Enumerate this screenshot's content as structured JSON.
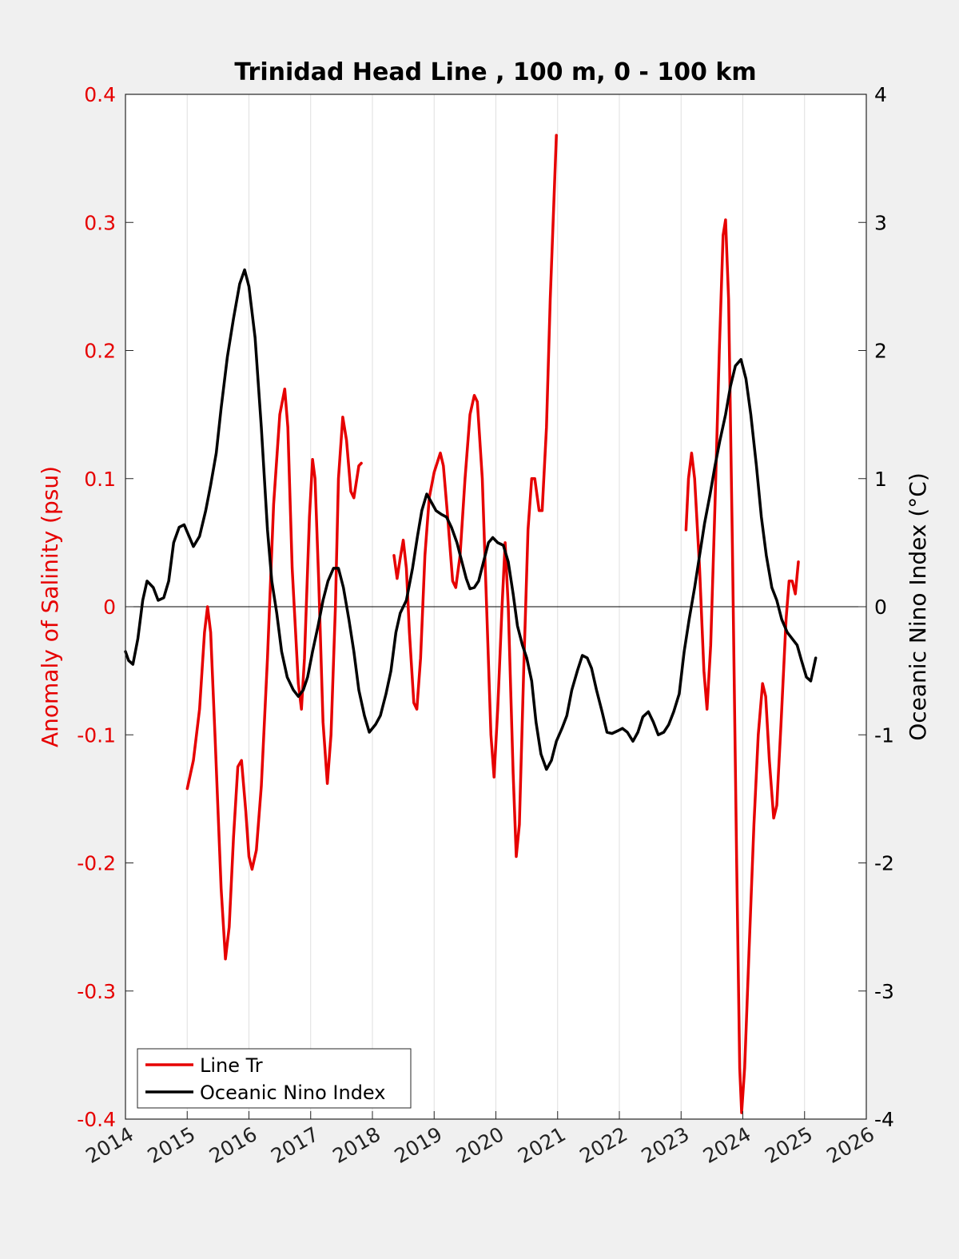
{
  "chart_data": {
    "type": "line",
    "title": "Trinidad Head Line , 100 m, 0 - 100 km",
    "ylabel_left": "Anomaly of Salinity (psu)",
    "ylabel_right": "Oceanic Nino Index (°C)",
    "xlim": [
      2014,
      2026
    ],
    "ylim_left": [
      -0.4,
      0.4
    ],
    "ylim_right": [
      -4,
      4
    ],
    "x_ticks": [
      "2014",
      "2015",
      "2016",
      "2017",
      "2018",
      "2019",
      "2020",
      "2021",
      "2022",
      "2023",
      "2024",
      "2025",
      "2026"
    ],
    "y_ticks_left": [
      "-0.4",
      "-0.3",
      "-0.2",
      "-0.1",
      "0",
      "0.1",
      "0.2",
      "0.3",
      "0.4"
    ],
    "y_ticks_right": [
      "-4",
      "-3",
      "-2",
      "-1",
      "0",
      "1",
      "2",
      "3",
      "4"
    ],
    "grid": "vertical",
    "legend_position": "bottom-left",
    "colors": {
      "salinity": "#e60000",
      "oni": "#000000",
      "background": "#f0f0f0"
    },
    "series": [
      {
        "name": "Line Tr",
        "axis": "left",
        "segments": [
          [
            [
              2015.0,
              -0.142
            ],
            [
              2015.1,
              -0.12
            ],
            [
              2015.2,
              -0.08
            ],
            [
              2015.28,
              -0.02
            ],
            [
              2015.33,
              0.0
            ],
            [
              2015.38,
              -0.02
            ],
            [
              2015.45,
              -0.1
            ],
            [
              2015.55,
              -0.22
            ],
            [
              2015.62,
              -0.275
            ],
            [
              2015.68,
              -0.25
            ],
            [
              2015.75,
              -0.18
            ],
            [
              2015.82,
              -0.125
            ],
            [
              2015.88,
              -0.12
            ],
            [
              2015.95,
              -0.16
            ],
            [
              2016.0,
              -0.195
            ],
            [
              2016.05,
              -0.205
            ],
            [
              2016.12,
              -0.19
            ],
            [
              2016.2,
              -0.14
            ],
            [
              2016.3,
              -0.04
            ],
            [
              2016.4,
              0.08
            ],
            [
              2016.5,
              0.15
            ],
            [
              2016.58,
              0.17
            ],
            [
              2016.63,
              0.14
            ],
            [
              2016.7,
              0.03
            ],
            [
              2016.8,
              -0.06
            ],
            [
              2016.85,
              -0.08
            ],
            [
              2016.9,
              -0.04
            ],
            [
              2016.98,
              0.07
            ],
            [
              2017.03,
              0.115
            ],
            [
              2017.07,
              0.1
            ],
            [
              2017.13,
              0.02
            ],
            [
              2017.2,
              -0.09
            ],
            [
              2017.27,
              -0.138
            ],
            [
              2017.33,
              -0.1
            ],
            [
              2017.4,
              0.0
            ],
            [
              2017.45,
              0.1
            ],
            [
              2017.52,
              0.148
            ],
            [
              2017.58,
              0.13
            ],
            [
              2017.65,
              0.09
            ],
            [
              2017.7,
              0.085
            ],
            [
              2017.78,
              0.11
            ],
            [
              2017.82,
              0.112
            ]
          ],
          [
            [
              2018.35,
              0.04
            ],
            [
              2018.4,
              0.022
            ],
            [
              2018.45,
              0.038
            ],
            [
              2018.5,
              0.052
            ],
            [
              2018.55,
              0.03
            ],
            [
              2018.6,
              -0.02
            ],
            [
              2018.67,
              -0.075
            ],
            [
              2018.72,
              -0.08
            ],
            [
              2018.78,
              -0.04
            ],
            [
              2018.85,
              0.04
            ],
            [
              2018.92,
              0.085
            ],
            [
              2019.0,
              0.105
            ],
            [
              2019.1,
              0.12
            ],
            [
              2019.15,
              0.11
            ],
            [
              2019.22,
              0.07
            ],
            [
              2019.3,
              0.02
            ],
            [
              2019.35,
              0.015
            ],
            [
              2019.42,
              0.04
            ],
            [
              2019.5,
              0.1
            ],
            [
              2019.58,
              0.15
            ],
            [
              2019.65,
              0.165
            ],
            [
              2019.7,
              0.16
            ],
            [
              2019.78,
              0.1
            ],
            [
              2019.85,
              0.0
            ],
            [
              2019.92,
              -0.1
            ],
            [
              2019.97,
              -0.133
            ],
            [
              2020.03,
              -0.08
            ],
            [
              2020.1,
              0.0
            ],
            [
              2020.15,
              0.05
            ],
            [
              2020.2,
              0.0
            ],
            [
              2020.28,
              -0.13
            ],
            [
              2020.33,
              -0.195
            ],
            [
              2020.38,
              -0.17
            ],
            [
              2020.45,
              -0.05
            ],
            [
              2020.52,
              0.06
            ],
            [
              2020.58,
              0.1
            ],
            [
              2020.63,
              0.1
            ],
            [
              2020.7,
              0.075
            ],
            [
              2020.75,
              0.075
            ],
            [
              2020.82,
              0.14
            ],
            [
              2020.88,
              0.24
            ],
            [
              2020.95,
              0.33
            ],
            [
              2020.98,
              0.368
            ]
          ],
          [
            [
              2023.08,
              0.06
            ],
            [
              2023.12,
              0.1
            ],
            [
              2023.17,
              0.12
            ],
            [
              2023.22,
              0.1
            ],
            [
              2023.3,
              0.03
            ],
            [
              2023.37,
              -0.05
            ],
            [
              2023.42,
              -0.08
            ],
            [
              2023.48,
              -0.03
            ],
            [
              2023.55,
              0.08
            ],
            [
              2023.62,
              0.2
            ],
            [
              2023.68,
              0.29
            ],
            [
              2023.72,
              0.302
            ],
            [
              2023.77,
              0.24
            ],
            [
              2023.83,
              0.05
            ],
            [
              2023.9,
              -0.2
            ],
            [
              2023.95,
              -0.36
            ],
            [
              2023.98,
              -0.395
            ],
            [
              2024.03,
              -0.36
            ],
            [
              2024.1,
              -0.27
            ],
            [
              2024.18,
              -0.17
            ],
            [
              2024.25,
              -0.1
            ],
            [
              2024.32,
              -0.06
            ],
            [
              2024.37,
              -0.07
            ],
            [
              2024.43,
              -0.12
            ],
            [
              2024.5,
              -0.165
            ],
            [
              2024.55,
              -0.155
            ],
            [
              2024.62,
              -0.09
            ],
            [
              2024.7,
              -0.01
            ],
            [
              2024.75,
              0.02
            ],
            [
              2024.8,
              0.02
            ],
            [
              2024.85,
              0.01
            ],
            [
              2024.9,
              0.035
            ]
          ]
        ]
      },
      {
        "name": "Oceanic Nino Index",
        "axis": "right",
        "segments": [
          [
            [
              2014.0,
              -0.35
            ],
            [
              2014.05,
              -0.42
            ],
            [
              2014.12,
              -0.45
            ],
            [
              2014.2,
              -0.25
            ],
            [
              2014.28,
              0.05
            ],
            [
              2014.35,
              0.2
            ],
            [
              2014.45,
              0.15
            ],
            [
              2014.53,
              0.05
            ],
            [
              2014.62,
              0.07
            ],
            [
              2014.7,
              0.2
            ],
            [
              2014.78,
              0.5
            ],
            [
              2014.87,
              0.62
            ],
            [
              2014.95,
              0.64
            ],
            [
              2015.03,
              0.55
            ],
            [
              2015.1,
              0.47
            ],
            [
              2015.2,
              0.55
            ],
            [
              2015.3,
              0.75
            ],
            [
              2015.38,
              0.95
            ],
            [
              2015.47,
              1.2
            ],
            [
              2015.55,
              1.55
            ],
            [
              2015.65,
              1.95
            ],
            [
              2015.75,
              2.25
            ],
            [
              2015.85,
              2.52
            ],
            [
              2015.93,
              2.63
            ],
            [
              2016.0,
              2.5
            ],
            [
              2016.1,
              2.1
            ],
            [
              2016.2,
              1.4
            ],
            [
              2016.3,
              0.6
            ],
            [
              2016.37,
              0.2
            ],
            [
              2016.45,
              -0.05
            ],
            [
              2016.53,
              -0.35
            ],
            [
              2016.62,
              -0.55
            ],
            [
              2016.72,
              -0.65
            ],
            [
              2016.8,
              -0.7
            ],
            [
              2016.88,
              -0.65
            ],
            [
              2016.95,
              -0.55
            ],
            [
              2017.03,
              -0.35
            ],
            [
              2017.12,
              -0.15
            ],
            [
              2017.2,
              0.05
            ],
            [
              2017.28,
              0.2
            ],
            [
              2017.37,
              0.3
            ],
            [
              2017.45,
              0.3
            ],
            [
              2017.53,
              0.15
            ],
            [
              2017.62,
              -0.1
            ],
            [
              2017.7,
              -0.35
            ],
            [
              2017.78,
              -0.65
            ],
            [
              2017.87,
              -0.85
            ],
            [
              2017.95,
              -0.98
            ],
            [
              2018.05,
              -0.92
            ],
            [
              2018.13,
              -0.85
            ],
            [
              2018.22,
              -0.68
            ],
            [
              2018.3,
              -0.5
            ],
            [
              2018.38,
              -0.2
            ],
            [
              2018.45,
              -0.05
            ],
            [
              2018.55,
              0.05
            ],
            [
              2018.65,
              0.3
            ],
            [
              2018.73,
              0.55
            ],
            [
              2018.8,
              0.75
            ],
            [
              2018.88,
              0.88
            ],
            [
              2018.95,
              0.82
            ],
            [
              2019.03,
              0.75
            ],
            [
              2019.12,
              0.72
            ],
            [
              2019.2,
              0.7
            ],
            [
              2019.28,
              0.62
            ],
            [
              2019.37,
              0.5
            ],
            [
              2019.45,
              0.35
            ],
            [
              2019.52,
              0.22
            ],
            [
              2019.58,
              0.14
            ],
            [
              2019.65,
              0.15
            ],
            [
              2019.72,
              0.2
            ],
            [
              2019.8,
              0.35
            ],
            [
              2019.88,
              0.5
            ],
            [
              2019.95,
              0.54
            ],
            [
              2020.03,
              0.5
            ],
            [
              2020.12,
              0.48
            ],
            [
              2020.2,
              0.35
            ],
            [
              2020.28,
              0.1
            ],
            [
              2020.35,
              -0.15
            ],
            [
              2020.43,
              -0.3
            ],
            [
              2020.5,
              -0.4
            ],
            [
              2020.58,
              -0.58
            ],
            [
              2020.65,
              -0.9
            ],
            [
              2020.73,
              -1.15
            ],
            [
              2020.82,
              -1.27
            ],
            [
              2020.9,
              -1.2
            ],
            [
              2020.98,
              -1.05
            ],
            [
              2021.07,
              -0.95
            ],
            [
              2021.15,
              -0.85
            ],
            [
              2021.23,
              -0.65
            ],
            [
              2021.32,
              -0.5
            ],
            [
              2021.4,
              -0.38
            ],
            [
              2021.48,
              -0.4
            ],
            [
              2021.55,
              -0.48
            ],
            [
              2021.63,
              -0.65
            ],
            [
              2021.72,
              -0.82
            ],
            [
              2021.8,
              -0.98
            ],
            [
              2021.88,
              -0.99
            ],
            [
              2021.97,
              -0.97
            ],
            [
              2022.05,
              -0.95
            ],
            [
              2022.13,
              -0.98
            ],
            [
              2022.22,
              -1.05
            ],
            [
              2022.3,
              -0.98
            ],
            [
              2022.38,
              -0.86
            ],
            [
              2022.47,
              -0.82
            ],
            [
              2022.55,
              -0.9
            ],
            [
              2022.63,
              -1.0
            ],
            [
              2022.72,
              -0.98
            ],
            [
              2022.8,
              -0.92
            ],
            [
              2022.88,
              -0.82
            ],
            [
              2022.97,
              -0.68
            ],
            [
              2023.05,
              -0.35
            ],
            [
              2023.13,
              -0.1
            ],
            [
              2023.22,
              0.15
            ],
            [
              2023.3,
              0.4
            ],
            [
              2023.38,
              0.65
            ],
            [
              2023.47,
              0.88
            ],
            [
              2023.55,
              1.1
            ],
            [
              2023.63,
              1.3
            ],
            [
              2023.72,
              1.5
            ],
            [
              2023.8,
              1.72
            ],
            [
              2023.88,
              1.88
            ],
            [
              2023.97,
              1.93
            ],
            [
              2024.05,
              1.78
            ],
            [
              2024.13,
              1.5
            ],
            [
              2024.22,
              1.1
            ],
            [
              2024.3,
              0.7
            ],
            [
              2024.38,
              0.4
            ],
            [
              2024.47,
              0.15
            ],
            [
              2024.55,
              0.05
            ],
            [
              2024.63,
              -0.1
            ],
            [
              2024.72,
              -0.2
            ],
            [
              2024.8,
              -0.25
            ],
            [
              2024.88,
              -0.3
            ],
            [
              2024.95,
              -0.42
            ],
            [
              2025.03,
              -0.55
            ],
            [
              2025.1,
              -0.58
            ],
            [
              2025.18,
              -0.4
            ]
          ]
        ]
      }
    ]
  }
}
